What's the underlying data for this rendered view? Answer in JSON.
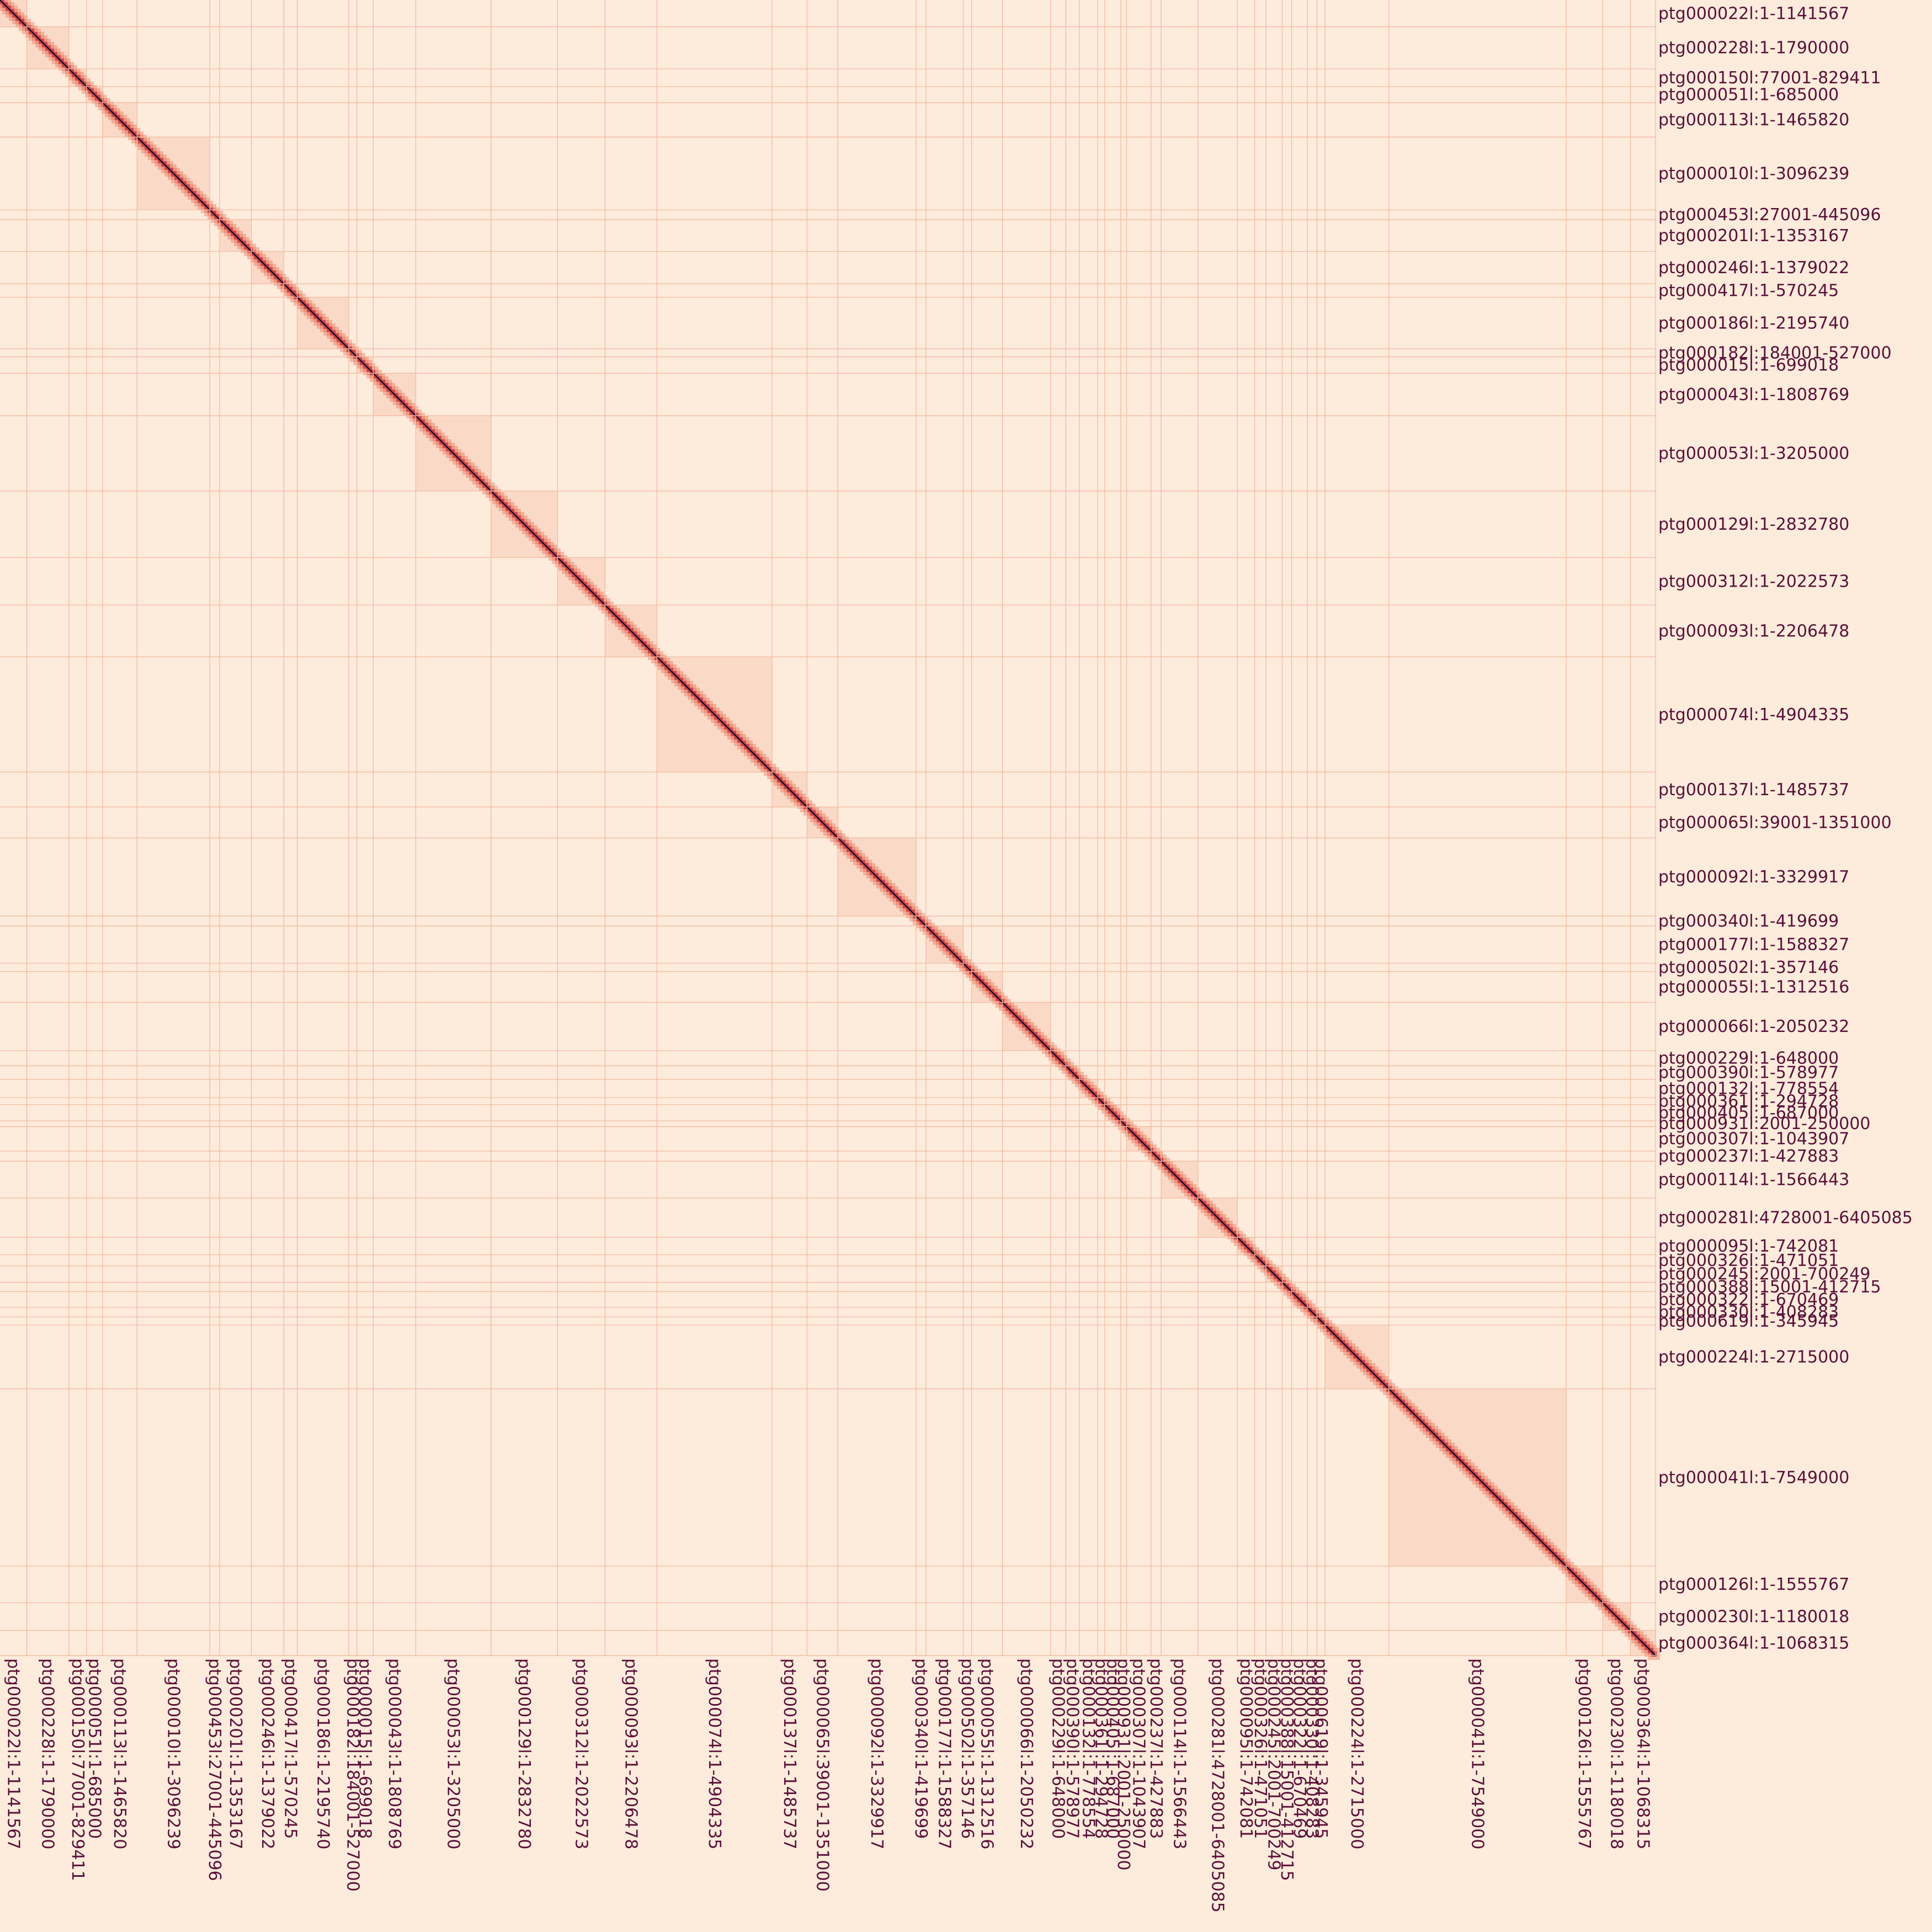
{
  "colors": {
    "background": "#fdebdc",
    "boundary": "#f3b79c",
    "low": "#f6c6ad",
    "mid": "#e85f45",
    "high": "#a3173e",
    "max": "#1c0b24",
    "label": "#5a1038"
  },
  "chart_data": {
    "type": "heatmap",
    "title": "",
    "xlabel": "",
    "ylabel": "",
    "genome_span_bp": 97212116,
    "contigs": [
      {
        "label": "ptg000022l:1-1141567",
        "length_bp": 1141567
      },
      {
        "label": "ptg000228l:1-1790000",
        "length_bp": 1790000
      },
      {
        "label": "ptg000150l:77001-829411",
        "length_bp": 752411
      },
      {
        "label": "ptg000051l:1-685000",
        "length_bp": 685000
      },
      {
        "label": "ptg000113l:1-1465820",
        "length_bp": 1465820
      },
      {
        "label": "ptg000010l:1-3096239",
        "length_bp": 3096239
      },
      {
        "label": "ptg000453l:27001-445096",
        "length_bp": 418096
      },
      {
        "label": "ptg000201l:1-1353167",
        "length_bp": 1353167
      },
      {
        "label": "ptg000246l:1-1379022",
        "length_bp": 1379022
      },
      {
        "label": "ptg000417l:1-570245",
        "length_bp": 570245
      },
      {
        "label": "ptg000186l:1-2195740",
        "length_bp": 2195740
      },
      {
        "label": "ptg000182l:184001-527000",
        "length_bp": 343000
      },
      {
        "label": "ptg000015l:1-699018",
        "length_bp": 699018
      },
      {
        "label": "ptg000043l:1-1808769",
        "length_bp": 1808769
      },
      {
        "label": "ptg000053l:1-3205000",
        "length_bp": 3205000
      },
      {
        "label": "ptg000129l:1-2832780",
        "length_bp": 2832780
      },
      {
        "label": "ptg000312l:1-2022573",
        "length_bp": 2022573
      },
      {
        "label": "ptg000093l:1-2206478",
        "length_bp": 2206478
      },
      {
        "label": "ptg000074l:1-4904335",
        "length_bp": 4904335
      },
      {
        "label": "ptg000137l:1-1485737",
        "length_bp": 1485737
      },
      {
        "label": "ptg000065l:39001-1351000",
        "length_bp": 1312000
      },
      {
        "label": "ptg000092l:1-3329917",
        "length_bp": 3329917
      },
      {
        "label": "ptg000340l:1-419699",
        "length_bp": 419699
      },
      {
        "label": "ptg000177l:1-1588327",
        "length_bp": 1588327
      },
      {
        "label": "ptg000502l:1-357146",
        "length_bp": 357146
      },
      {
        "label": "ptg000055l:1-1312516",
        "length_bp": 1312516
      },
      {
        "label": "ptg000066l:1-2050232",
        "length_bp": 2050232
      },
      {
        "label": "ptg000229l:1-648000",
        "length_bp": 648000
      },
      {
        "label": "ptg000390l:1-578977",
        "length_bp": 578977
      },
      {
        "label": "ptg000132l:1-778554",
        "length_bp": 778554
      },
      {
        "label": "ptg000361l:1-294728",
        "length_bp": 294728
      },
      {
        "label": "ptg000405l:1-687000",
        "length_bp": 687000
      },
      {
        "label": "ptg000931l:2001-250000",
        "length_bp": 248000
      },
      {
        "label": "ptg000307l:1-1043907",
        "length_bp": 1043907
      },
      {
        "label": "ptg000237l:1-427883",
        "length_bp": 427883
      },
      {
        "label": "ptg000114l:1-1566443",
        "length_bp": 1566443
      },
      {
        "label": "ptg000281l:4728001-6405085",
        "length_bp": 1677085
      },
      {
        "label": "ptg000095l:1-742081",
        "length_bp": 742081
      },
      {
        "label": "ptg000326l:1-471051",
        "length_bp": 471051
      },
      {
        "label": "ptg000245l:2001-700249",
        "length_bp": 698249
      },
      {
        "label": "ptg000388l:15001-412715",
        "length_bp": 397715
      },
      {
        "label": "ptg000322l:1-670469",
        "length_bp": 670469
      },
      {
        "label": "ptg000330l:1-408283",
        "length_bp": 408283
      },
      {
        "label": "ptg000619l:1-345945",
        "length_bp": 345945
      },
      {
        "label": "ptg000224l:1-2715000",
        "length_bp": 2715000
      },
      {
        "label": "ptg000041l:1-7549000",
        "length_bp": 7549000
      },
      {
        "label": "ptg000126l:1-1555767",
        "length_bp": 1555767
      },
      {
        "label": "ptg000230l:1-1180018",
        "length_bp": 1180018
      },
      {
        "label": "ptg000364l:1-1068315",
        "length_bp": 1068315
      }
    ],
    "intensity_scale": {
      "min": 0,
      "max": 1
    }
  }
}
